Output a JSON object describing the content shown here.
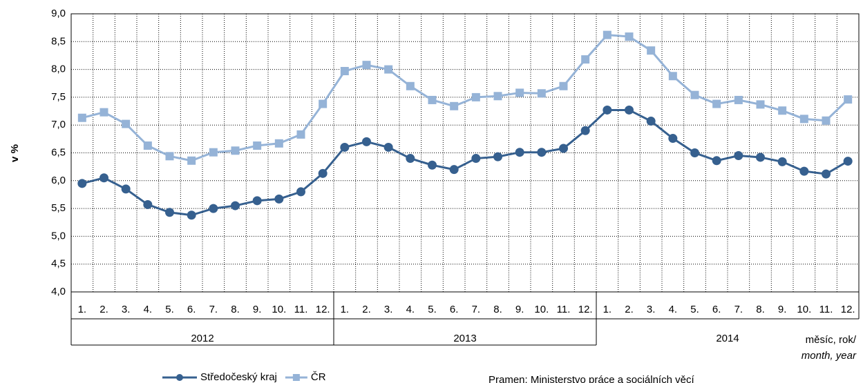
{
  "chart_data": {
    "type": "line",
    "y_label": "v %",
    "x_label": "měsíc, rok/",
    "x_label_en": "month, year",
    "source": "Pramen: Ministerstvo práce a sociálních věcí",
    "categories": [
      "1.",
      "2.",
      "3.",
      "4.",
      "5.",
      "6.",
      "7.",
      "8.",
      "9.",
      "10.",
      "11.",
      "12.",
      "1.",
      "2.",
      "3.",
      "4.",
      "5.",
      "6.",
      "7.",
      "8.",
      "9.",
      "10.",
      "11.",
      "12.",
      "1.",
      "2.",
      "3.",
      "4.",
      "5.",
      "6.",
      "7.",
      "8.",
      "9.",
      "10.",
      "11.",
      "12."
    ],
    "groups": [
      "2012",
      "2013",
      "2014"
    ],
    "series": [
      {
        "name": "Středočeský kraj",
        "color": "#36608f",
        "marker": "circle",
        "values": [
          5.95,
          6.05,
          5.85,
          5.57,
          5.43,
          5.38,
          5.5,
          5.55,
          5.64,
          5.67,
          5.8,
          6.13,
          6.6,
          6.7,
          6.6,
          6.4,
          6.28,
          6.2,
          6.4,
          6.43,
          6.51,
          6.51,
          6.58,
          6.9,
          7.27,
          7.27,
          7.07,
          6.76,
          6.5,
          6.36,
          6.45,
          6.42,
          6.34,
          6.17,
          6.12,
          6.35
        ]
      },
      {
        "name": "ČR",
        "color": "#95b3d7",
        "marker": "square",
        "values": [
          7.13,
          7.23,
          7.02,
          6.63,
          6.44,
          6.36,
          6.51,
          6.54,
          6.63,
          6.67,
          6.83,
          7.38,
          7.97,
          8.08,
          8.0,
          7.7,
          7.45,
          7.34,
          7.5,
          7.52,
          7.58,
          7.57,
          7.7,
          8.18,
          8.62,
          8.59,
          8.34,
          7.88,
          7.54,
          7.38,
          7.45,
          7.37,
          7.26,
          7.11,
          7.08,
          7.46
        ]
      }
    ],
    "ylim": [
      4,
      9
    ],
    "yticks": [
      {
        "value": 4,
        "label": "4,0"
      },
      {
        "value": 4.5,
        "label": "4,5"
      },
      {
        "value": 5,
        "label": "5,0"
      },
      {
        "value": 5.5,
        "label": "5,5"
      },
      {
        "value": 6,
        "label": "6,0"
      },
      {
        "value": 6.5,
        "label": "6,5"
      },
      {
        "value": 7,
        "label": "7,0"
      },
      {
        "value": 7.5,
        "label": "7,5"
      },
      {
        "value": 8,
        "label": "8,0"
      },
      {
        "value": 8.5,
        "label": "8,5"
      },
      {
        "value": 9,
        "label": "9,0"
      }
    ],
    "grid": true
  }
}
